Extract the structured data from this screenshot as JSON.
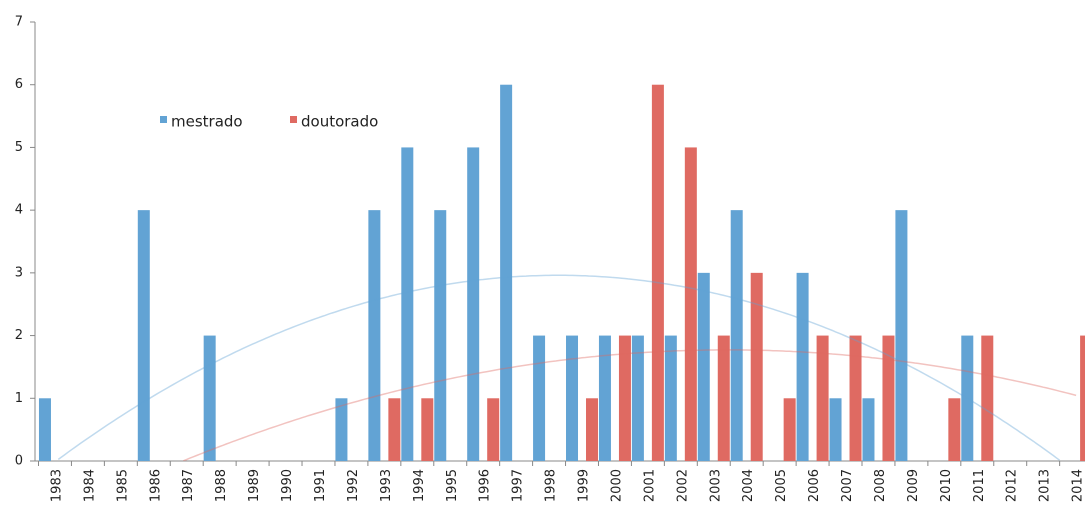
{
  "chart_data": {
    "type": "bar",
    "categories": [
      "1983",
      "1984",
      "1985",
      "1986",
      "1987",
      "1988",
      "1989",
      "1990",
      "1991",
      "1992",
      "1993",
      "1994",
      "1995",
      "1996",
      "1997",
      "1998",
      "1999",
      "2000",
      "2001",
      "2002",
      "2003",
      "2004",
      "2005",
      "2006",
      "2007",
      "2008",
      "2009",
      "2010",
      "2011",
      "2012",
      "2013",
      "2014"
    ],
    "series": [
      {
        "name": "mestrado",
        "color": "#62a3d4",
        "values": [
          1,
          0,
          0,
          4,
          0,
          2,
          0,
          0,
          0,
          1,
          4,
          5,
          4,
          5,
          6,
          2,
          2,
          2,
          2,
          2,
          3,
          4,
          0,
          3,
          1,
          1,
          4,
          0,
          2,
          0,
          0,
          0
        ]
      },
      {
        "name": "doutorado",
        "color": "#df6a62",
        "values": [
          0,
          0,
          0,
          0,
          0,
          0,
          0,
          0,
          0,
          0,
          1,
          1,
          0,
          1,
          0,
          0,
          1,
          2,
          6,
          5,
          2,
          3,
          1,
          2,
          2,
          2,
          0,
          1,
          2,
          0,
          0,
          2
        ]
      }
    ],
    "ylim": [
      0,
      7
    ],
    "yticks": [
      0,
      1,
      2,
      3,
      4,
      5,
      6,
      7
    ],
    "grid": false,
    "trendline": true,
    "legend": "top-left"
  }
}
